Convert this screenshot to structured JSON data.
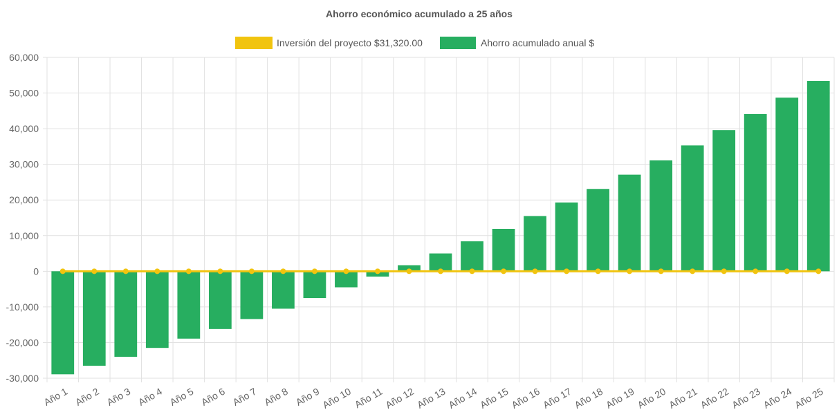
{
  "chart_data": {
    "type": "bar",
    "title": "Ahorro económico acumulado a 25 años",
    "categories": [
      "Año 1",
      "Año 2",
      "Año 3",
      "Año 4",
      "Año 5",
      "Año 6",
      "Año 7",
      "Año 8",
      "Año 9",
      "Año 10",
      "Año 11",
      "Año 12",
      "Año 13",
      "Año 14",
      "Año 15",
      "Año 16",
      "Año 17",
      "Año 18",
      "Año 19",
      "Año 20",
      "Año 21",
      "Año 22",
      "Año 23",
      "Año 24",
      "Año 25"
    ],
    "series": [
      {
        "name": "Inversión del proyecto $31,320.00",
        "type": "line",
        "color": "#f1c40f",
        "values": [
          0,
          0,
          0,
          0,
          0,
          0,
          0,
          0,
          0,
          0,
          0,
          0,
          0,
          0,
          0,
          0,
          0,
          0,
          0,
          0,
          0,
          0,
          0,
          0,
          0
        ]
      },
      {
        "name": "Ahorro acumulado anual $",
        "type": "bar",
        "color": "#27ae60",
        "values": [
          -28900,
          -26500,
          -24000,
          -21500,
          -18900,
          -16200,
          -13400,
          -10500,
          -7500,
          -4500,
          -1500,
          1700,
          5000,
          8400,
          11900,
          15500,
          19300,
          23100,
          27100,
          31100,
          35300,
          39600,
          44100,
          48700,
          53400
        ]
      }
    ],
    "xlabel": "",
    "ylabel": "",
    "ylim": [
      -30000,
      60000
    ],
    "yticks": [
      "60,000",
      "50,000",
      "40,000",
      "30,000",
      "20,000",
      "10,000",
      "0",
      "-10,000",
      "-20,000",
      "-30,000"
    ],
    "ytick_values": [
      60000,
      50000,
      40000,
      30000,
      20000,
      10000,
      0,
      -10000,
      -20000,
      -30000
    ],
    "grid": true,
    "legend_position": "top"
  }
}
